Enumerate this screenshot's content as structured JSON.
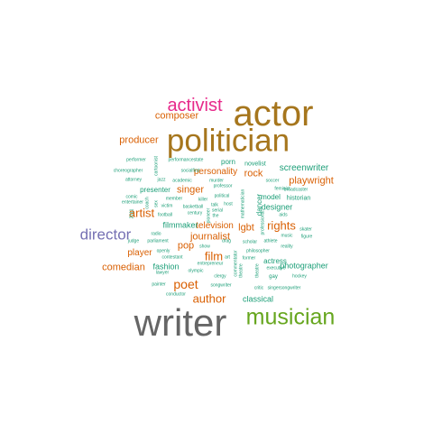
{
  "palette": {
    "gray": "#666666",
    "green": "#66a61e",
    "gold": "#a6761d",
    "magenta": "#e7298a",
    "orange": "#d95f02",
    "purple": "#7570b3",
    "teal": "#1b9e77"
  },
  "words": [
    {
      "text": "writer",
      "color": "gray"
    },
    {
      "text": "actor",
      "color": "gold"
    },
    {
      "text": "politician",
      "color": "gold"
    },
    {
      "text": "musician",
      "color": "green"
    },
    {
      "text": "activist",
      "color": "magenta"
    },
    {
      "text": "director",
      "color": "purple"
    },
    {
      "text": "poet",
      "color": "orange"
    },
    {
      "text": "author",
      "color": "orange"
    },
    {
      "text": "film",
      "color": "orange"
    },
    {
      "text": "rights",
      "color": "orange"
    },
    {
      "text": "artist",
      "color": "orange"
    },
    {
      "text": "producer",
      "color": "orange"
    },
    {
      "text": "composer",
      "color": "orange"
    },
    {
      "text": "comedian",
      "color": "orange"
    },
    {
      "text": "singer",
      "color": "orange"
    },
    {
      "text": "journalist",
      "color": "orange"
    },
    {
      "text": "playwright",
      "color": "orange"
    },
    {
      "text": "television",
      "color": "orange"
    },
    {
      "text": "rock",
      "color": "orange"
    },
    {
      "text": "lgbt",
      "color": "orange"
    },
    {
      "text": "pop",
      "color": "orange"
    },
    {
      "text": "player",
      "color": "orange"
    },
    {
      "text": "personality",
      "color": "orange"
    },
    {
      "text": "screenwriter",
      "color": "teal"
    },
    {
      "text": "designer",
      "color": "teal"
    },
    {
      "text": "filmmaker",
      "color": "teal"
    },
    {
      "text": "fashion",
      "color": "teal"
    },
    {
      "text": "classical",
      "color": "teal"
    },
    {
      "text": "photographer",
      "color": "teal"
    },
    {
      "text": "actress",
      "color": "teal"
    },
    {
      "text": "novelist",
      "color": "teal"
    },
    {
      "text": "porn",
      "color": "teal"
    },
    {
      "text": "model",
      "color": "teal"
    },
    {
      "text": "presenter",
      "color": "teal"
    },
    {
      "text": "historian",
      "color": "teal"
    },
    {
      "text": "dancer",
      "color": "teal"
    },
    {
      "text": "performer",
      "color": "teal"
    },
    {
      "text": "performancestate",
      "color": "teal"
    },
    {
      "text": "choreographer",
      "color": "teal"
    },
    {
      "text": "socialfirst",
      "color": "teal"
    },
    {
      "text": "cartoonist",
      "color": "teal"
    },
    {
      "text": "attorney",
      "color": "teal"
    },
    {
      "text": "jazz",
      "color": "teal"
    },
    {
      "text": "academic",
      "color": "teal"
    },
    {
      "text": "murder",
      "color": "teal"
    },
    {
      "text": "soccer",
      "color": "teal"
    },
    {
      "text": "professor",
      "color": "teal"
    },
    {
      "text": "feminist",
      "color": "teal"
    },
    {
      "text": "broadcaster",
      "color": "teal"
    },
    {
      "text": "comic",
      "color": "teal"
    },
    {
      "text": "entertainer",
      "color": "teal"
    },
    {
      "text": "member",
      "color": "teal"
    },
    {
      "text": "killer",
      "color": "teal"
    },
    {
      "text": "political",
      "color": "teal"
    },
    {
      "text": "talk",
      "color": "teal"
    },
    {
      "text": "host",
      "color": "teal"
    },
    {
      "text": "victim",
      "color": "teal"
    },
    {
      "text": "basketball",
      "color": "teal"
    },
    {
      "text": "serial",
      "color": "teal"
    },
    {
      "text": "century",
      "color": "teal"
    },
    {
      "text": "the",
      "color": "teal"
    },
    {
      "text": "football",
      "color": "teal"
    },
    {
      "text": "skater",
      "color": "teal"
    },
    {
      "text": "aids",
      "color": "teal"
    },
    {
      "text": "radio",
      "color": "teal"
    },
    {
      "text": "music",
      "color": "teal"
    },
    {
      "text": "figure",
      "color": "teal"
    },
    {
      "text": "judge",
      "color": "teal"
    },
    {
      "text": "parliament",
      "color": "teal"
    },
    {
      "text": "drag",
      "color": "teal"
    },
    {
      "text": "scholar",
      "color": "teal"
    },
    {
      "text": "athlete",
      "color": "teal"
    },
    {
      "text": "show",
      "color": "teal"
    },
    {
      "text": "reality",
      "color": "teal"
    },
    {
      "text": "openly",
      "color": "teal"
    },
    {
      "text": "philosopher",
      "color": "teal"
    },
    {
      "text": "contestant",
      "color": "teal"
    },
    {
      "text": "art",
      "color": "teal"
    },
    {
      "text": "former",
      "color": "teal"
    },
    {
      "text": "entrepreneur",
      "color": "teal"
    },
    {
      "text": "executive",
      "color": "teal"
    },
    {
      "text": "lawyer",
      "color": "teal"
    },
    {
      "text": "olympic",
      "color": "teal"
    },
    {
      "text": "clergy",
      "color": "teal"
    },
    {
      "text": "gay",
      "color": "teal"
    },
    {
      "text": "hockey",
      "color": "teal"
    },
    {
      "text": "painter",
      "color": "teal"
    },
    {
      "text": "songwriter",
      "color": "teal"
    },
    {
      "text": "critic",
      "color": "teal"
    },
    {
      "text": "singersongwriter",
      "color": "teal"
    },
    {
      "text": "conductor",
      "color": "teal"
    },
    {
      "text": "coach",
      "color": "teal"
    },
    {
      "text": "theatre",
      "color": "teal"
    },
    {
      "text": "professional",
      "color": "teal"
    },
    {
      "text": "commentator",
      "color": "teal"
    },
    {
      "text": "sex",
      "color": "teal"
    },
    {
      "text": "2011",
      "color": "teal"
    },
    {
      "text": "pioneer",
      "color": "teal"
    },
    {
      "text": "mathematician",
      "color": "teal"
    },
    {
      "text": "theatre",
      "color": "teal"
    }
  ]
}
